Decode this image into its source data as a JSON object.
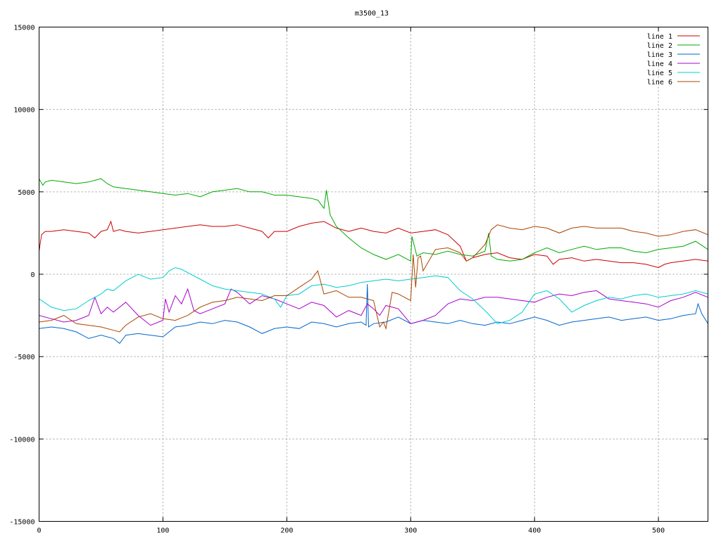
{
  "chart_data": {
    "type": "line",
    "title": "m3500_13",
    "xlabel": "",
    "ylabel": "",
    "xlim": [
      0,
      540
    ],
    "ylim": [
      -15000,
      15000
    ],
    "xticks": [
      0,
      100,
      200,
      300,
      400,
      500
    ],
    "yticks": [
      -15000,
      -10000,
      -5000,
      0,
      5000,
      10000,
      15000
    ],
    "grid": true,
    "legend_position": "top-right",
    "series": [
      {
        "name": "line 1",
        "color": "#cc0000",
        "x": [
          0,
          2,
          5,
          10,
          20,
          30,
          40,
          45,
          50,
          55,
          58,
          60,
          65,
          70,
          80,
          90,
          100,
          110,
          120,
          130,
          140,
          150,
          160,
          170,
          180,
          185,
          190,
          200,
          210,
          220,
          230,
          240,
          250,
          260,
          270,
          280,
          290,
          300,
          310,
          320,
          330,
          340,
          345,
          350,
          360,
          370,
          380,
          390,
          400,
          410,
          415,
          420,
          430,
          440,
          450,
          460,
          470,
          480,
          490,
          500,
          505,
          510,
          520,
          530,
          540
        ],
        "y": [
          1400,
          2400,
          2600,
          2600,
          2700,
          2600,
          2500,
          2200,
          2600,
          2700,
          3200,
          2600,
          2700,
          2600,
          2500,
          2600,
          2700,
          2800,
          2900,
          3000,
          2900,
          2900,
          3000,
          2800,
          2600,
          2200,
          2600,
          2600,
          2900,
          3100,
          3200,
          2800,
          2600,
          2800,
          2600,
          2500,
          2800,
          2500,
          2600,
          2700,
          2400,
          1700,
          800,
          1000,
          1200,
          1300,
          1000,
          900,
          1200,
          1100,
          600,
          900,
          1000,
          800,
          900,
          800,
          700,
          700,
          600,
          400,
          600,
          700,
          800,
          900,
          800
        ]
      },
      {
        "name": "line 2",
        "color": "#00aa00",
        "x": [
          0,
          3,
          5,
          10,
          20,
          30,
          40,
          50,
          55,
          60,
          70,
          80,
          90,
          100,
          110,
          120,
          130,
          140,
          150,
          160,
          170,
          180,
          190,
          200,
          210,
          220,
          225,
          230,
          232,
          235,
          240,
          250,
          255,
          260,
          270,
          280,
          290,
          300,
          301,
          305,
          310,
          320,
          330,
          340,
          350,
          360,
          363,
          365,
          370,
          380,
          390,
          400,
          410,
          420,
          430,
          440,
          450,
          460,
          470,
          480,
          490,
          500,
          510,
          520,
          530,
          540
        ],
        "y": [
          5800,
          5400,
          5600,
          5700,
          5600,
          5500,
          5600,
          5800,
          5500,
          5300,
          5200,
          5100,
          5000,
          4900,
          4800,
          4900,
          4700,
          5000,
          5100,
          5200,
          5000,
          5000,
          4800,
          4800,
          4700,
          4600,
          4500,
          4000,
          5100,
          3600,
          2900,
          2200,
          1900,
          1600,
          1200,
          900,
          1200,
          800,
          2300,
          1100,
          1300,
          1200,
          1400,
          1200,
          1100,
          1400,
          2500,
          1100,
          900,
          800,
          900,
          1300,
          1600,
          1300,
          1500,
          1700,
          1500,
          1600,
          1600,
          1400,
          1300,
          1500,
          1600,
          1700,
          2000,
          1500
        ]
      },
      {
        "name": "line 3",
        "color": "#0066cc",
        "x": [
          0,
          10,
          20,
          30,
          40,
          50,
          60,
          65,
          70,
          80,
          90,
          100,
          110,
          120,
          130,
          140,
          150,
          160,
          170,
          180,
          190,
          200,
          210,
          220,
          230,
          240,
          250,
          260,
          264,
          265,
          266,
          270,
          280,
          290,
          300,
          310,
          320,
          330,
          340,
          350,
          360,
          370,
          380,
          390,
          400,
          410,
          420,
          430,
          440,
          450,
          460,
          470,
          480,
          490,
          500,
          510,
          520,
          530,
          532,
          535,
          540
        ],
        "y": [
          -3300,
          -3200,
          -3300,
          -3500,
          -3900,
          -3700,
          -3900,
          -4200,
          -3700,
          -3600,
          -3700,
          -3800,
          -3200,
          -3100,
          -2900,
          -3000,
          -2800,
          -2900,
          -3200,
          -3600,
          -3300,
          -3200,
          -3300,
          -2900,
          -3000,
          -3200,
          -3000,
          -2900,
          -3100,
          -600,
          -3200,
          -3000,
          -2900,
          -2600,
          -3000,
          -2800,
          -2900,
          -3000,
          -2800,
          -3000,
          -3100,
          -2900,
          -3000,
          -2800,
          -2600,
          -2800,
          -3100,
          -2900,
          -2800,
          -2700,
          -2600,
          -2800,
          -2700,
          -2600,
          -2800,
          -2700,
          -2500,
          -2400,
          -1800,
          -2400,
          -3000
        ]
      },
      {
        "name": "line 4",
        "color": "#aa00cc",
        "x": [
          0,
          10,
          20,
          30,
          40,
          45,
          50,
          55,
          60,
          70,
          80,
          90,
          100,
          102,
          105,
          110,
          115,
          120,
          125,
          130,
          140,
          150,
          155,
          160,
          170,
          180,
          190,
          200,
          210,
          220,
          230,
          240,
          250,
          260,
          265,
          270,
          275,
          280,
          290,
          300,
          310,
          320,
          330,
          340,
          350,
          360,
          370,
          380,
          390,
          400,
          410,
          420,
          430,
          440,
          450,
          460,
          470,
          480,
          490,
          500,
          510,
          520,
          530,
          540
        ],
        "y": [
          -2500,
          -2700,
          -2900,
          -2800,
          -2500,
          -1400,
          -2400,
          -2000,
          -2300,
          -1700,
          -2500,
          -3100,
          -2800,
          -1500,
          -2300,
          -1300,
          -1800,
          -900,
          -2200,
          -2400,
          -2100,
          -1800,
          -900,
          -1100,
          -1800,
          -1300,
          -1500,
          -1800,
          -2100,
          -1700,
          -1900,
          -2600,
          -2200,
          -2500,
          -1800,
          -2100,
          -2500,
          -1900,
          -2100,
          -3000,
          -2800,
          -2500,
          -1800,
          -1500,
          -1600,
          -1400,
          -1400,
          -1500,
          -1600,
          -1700,
          -1400,
          -1200,
          -1300,
          -1100,
          -1000,
          -1500,
          -1600,
          -1700,
          -1800,
          -2000,
          -1600,
          -1400,
          -1100,
          -1400
        ]
      },
      {
        "name": "line 5",
        "color": "#00cccc",
        "x": [
          0,
          10,
          20,
          30,
          40,
          50,
          55,
          60,
          70,
          80,
          90,
          100,
          105,
          110,
          115,
          120,
          130,
          140,
          150,
          160,
          170,
          180,
          190,
          195,
          200,
          210,
          220,
          230,
          240,
          250,
          260,
          270,
          280,
          290,
          300,
          310,
          320,
          330,
          340,
          350,
          360,
          370,
          380,
          390,
          400,
          410,
          420,
          430,
          440,
          450,
          460,
          470,
          480,
          490,
          500,
          510,
          520,
          530,
          540
        ],
        "y": [
          -1500,
          -2000,
          -2200,
          -2100,
          -1600,
          -1200,
          -900,
          -1000,
          -400,
          0,
          -300,
          -200,
          200,
          400,
          300,
          100,
          -300,
          -700,
          -900,
          -1000,
          -1100,
          -1200,
          -1500,
          -2000,
          -1300,
          -1200,
          -700,
          -600,
          -800,
          -700,
          -500,
          -400,
          -300,
          -400,
          -300,
          -200,
          -100,
          -200,
          -1000,
          -1500,
          -2200,
          -3000,
          -2800,
          -2300,
          -1200,
          -1000,
          -1500,
          -2300,
          -1900,
          -1600,
          -1400,
          -1500,
          -1300,
          -1200,
          -1400,
          -1300,
          -1200,
          -1000,
          -1200
        ]
      },
      {
        "name": "line 6",
        "color": "#aa4400",
        "x": [
          0,
          10,
          20,
          30,
          40,
          50,
          60,
          65,
          70,
          80,
          90,
          100,
          110,
          120,
          130,
          140,
          150,
          160,
          170,
          180,
          190,
          200,
          210,
          220,
          225,
          230,
          240,
          250,
          260,
          270,
          275,
          278,
          280,
          285,
          290,
          295,
          300,
          302,
          304,
          306,
          308,
          310,
          320,
          330,
          340,
          345,
          350,
          360,
          365,
          370,
          380,
          390,
          400,
          410,
          420,
          430,
          440,
          450,
          460,
          470,
          480,
          490,
          500,
          510,
          520,
          530,
          540
        ],
        "y": [
          -2900,
          -2800,
          -2500,
          -3000,
          -3100,
          -3200,
          -3400,
          -3500,
          -3100,
          -2600,
          -2400,
          -2700,
          -2800,
          -2500,
          -2000,
          -1700,
          -1600,
          -1400,
          -1500,
          -1600,
          -1300,
          -1300,
          -800,
          -300,
          200,
          -1200,
          -1000,
          -1400,
          -1400,
          -1600,
          -3200,
          -2900,
          -3300,
          -1100,
          -1200,
          -1400,
          -1600,
          1200,
          -800,
          1000,
          1100,
          200,
          1500,
          1600,
          1300,
          800,
          1000,
          1800,
          2700,
          3000,
          2800,
          2700,
          2900,
          2800,
          2500,
          2800,
          2900,
          2800,
          2800,
          2800,
          2600,
          2500,
          2300,
          2400,
          2600,
          2700,
          2400
        ]
      }
    ]
  }
}
